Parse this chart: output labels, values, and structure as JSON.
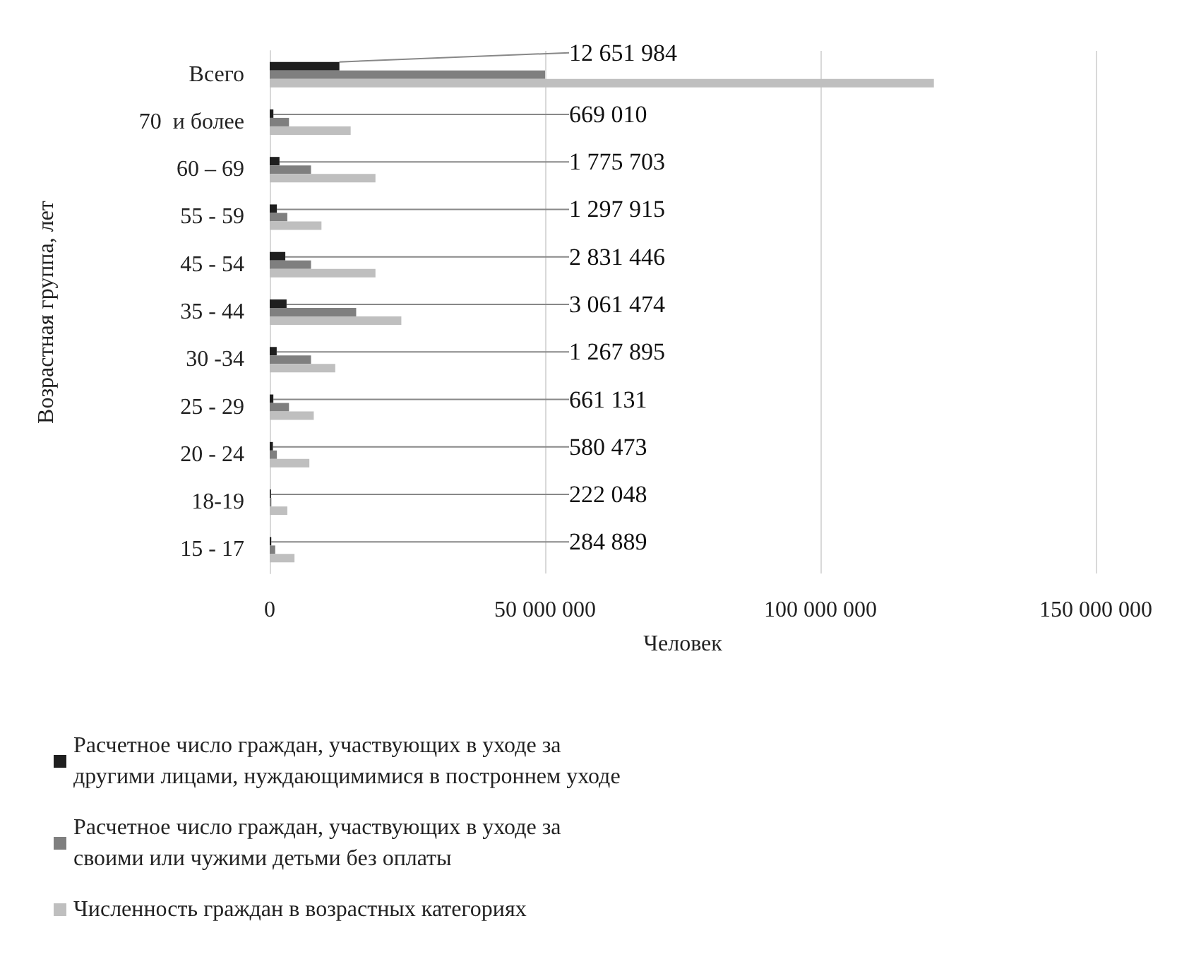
{
  "chart_data": {
    "type": "bar",
    "orientation": "horizontal",
    "xlabel": "Человек",
    "ylabel": "Возрастная группа, лет",
    "categories": [
      "Всего",
      "70  и более",
      "60 – 69",
      "55 - 59",
      "45 - 54",
      "35 - 44",
      "30 -34",
      "25 - 29",
      "20 - 24",
      "18-19",
      "15 - 17"
    ],
    "series": [
      {
        "name": "Расчетное число граждан, участвующих в уходе за другими лицами, нуждающимимися в построннем уходе",
        "color": "#1f1f1f",
        "values": [
          12651984,
          669010,
          1775703,
          1297915,
          2831446,
          3061474,
          1267895,
          661131,
          580473,
          222048,
          284889
        ],
        "value_labels": [
          "12 651 984",
          "669 010",
          "1 775 703",
          "1 297 915",
          "2 831 446",
          "3 061 474",
          "1 267 895",
          "661 131",
          "580 473",
          "222 048",
          "284 889"
        ]
      },
      {
        "name": "Расчетное число граждан, участвующих в уходе за своими или чужими детьми без оплаты",
        "color": "#7f7f7f",
        "values": [
          50000000,
          3500000,
          7500000,
          3200000,
          7500000,
          15700000,
          7500000,
          3500000,
          1300000,
          300000,
          1000000
        ]
      },
      {
        "name": "Численность граждан в возрастных категориях",
        "color": "#bfbfbf",
        "values": [
          120600000,
          14700000,
          19200000,
          9400000,
          19200000,
          23900000,
          11900000,
          8000000,
          7200000,
          3200000,
          4500000
        ]
      }
    ],
    "xlim": [
      0,
      150000000
    ],
    "xticks": [
      0,
      50000000,
      100000000,
      150000000
    ],
    "grid": "x",
    "legend": "bottom"
  }
}
